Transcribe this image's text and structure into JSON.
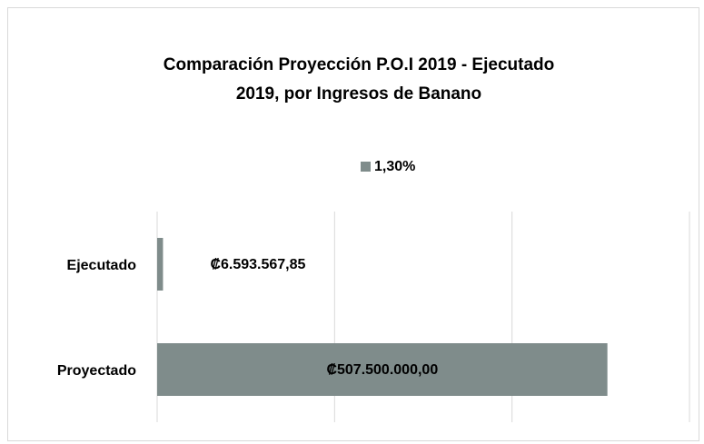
{
  "chart_data": {
    "type": "hbar",
    "title": [
      "Comparación Proyección P.O.I 2019 - Ejecutado",
      "2019, por Ingresos de Banano"
    ],
    "categories": [
      "Ejecutado",
      "Proyectado"
    ],
    "series": [
      {
        "name": "1,30%",
        "color": "#7f8c8b",
        "values": [
          6593567.85,
          507500000
        ],
        "value_labels": [
          "₡6.593.567,85",
          "₡507.500.000,00"
        ]
      }
    ],
    "xlim": [
      0,
      600000000
    ],
    "xticks": [
      0,
      200000000,
      400000000,
      600000000
    ],
    "grid": true,
    "legend": "top"
  }
}
